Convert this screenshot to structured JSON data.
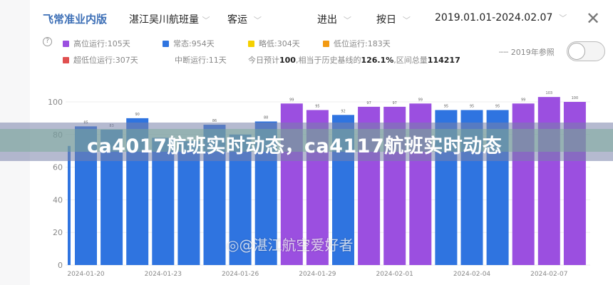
{
  "header": {
    "brand": "飞常准业内版",
    "route": "湛江吴川航班量",
    "type": "客运",
    "direction": "进出",
    "granularity": "按日",
    "date_range": "2019.01.01-2024.02.07"
  },
  "legend": {
    "items": [
      {
        "label": "高位运行:105天",
        "color": "#9b4fe0"
      },
      {
        "label": "常态:954天",
        "color": "#2f74e0"
      },
      {
        "label": "略低:304天",
        "color": "#f5d000"
      },
      {
        "label": "低位运行:183天",
        "color": "#f29a12"
      },
      {
        "label": "超低位运行:307天",
        "color": "#e05050"
      }
    ],
    "interrupted": "中断运行:11天",
    "summary_prefix": "今日预计",
    "summary_today": "100",
    "summary_mid": ",相当于历史基线的",
    "summary_pct": "126.1%",
    "summary_mid2": ",区间总量",
    "summary_total": "114217",
    "reference_label": "2019年参照",
    "reference_on": false
  },
  "overlay": {
    "banner": "ca4017航班实时动态，ca4117航班实时动态",
    "watermark": "@湛江航空爱好者"
  },
  "chart_data": {
    "type": "bar",
    "ylim": [
      0,
      105
    ],
    "yticks": [
      "0",
      "20",
      "40",
      "60",
      "80",
      "100"
    ],
    "grid": true,
    "xtick_labels": [
      "2024-01-20",
      "2024-01-23",
      "2024-01-26",
      "2024-01-29",
      "2024-02-01",
      "2024-02-04",
      "2024-02-07"
    ],
    "bars": [
      {
        "value": 73,
        "status": "常态",
        "label": ""
      },
      {
        "value": 85,
        "status": "常态",
        "label": "85"
      },
      {
        "value": 83,
        "status": "常态",
        "label": "83"
      },
      {
        "value": 90,
        "status": "常态",
        "label": "90"
      },
      {
        "value": 78,
        "status": "常态",
        "label": ""
      },
      {
        "value": 76,
        "status": "常态",
        "label": ""
      },
      {
        "value": 86,
        "status": "常态",
        "label": "86"
      },
      {
        "value": 80,
        "status": "常态",
        "label": ""
      },
      {
        "value": 88,
        "status": "常态",
        "label": "88"
      },
      {
        "value": 99,
        "status": "高位运行",
        "label": "99"
      },
      {
        "value": 95,
        "status": "高位运行",
        "label": "95"
      },
      {
        "value": 92,
        "status": "常态",
        "label": "92"
      },
      {
        "value": 97,
        "status": "高位运行",
        "label": "97"
      },
      {
        "value": 97,
        "status": "高位运行",
        "label": "97"
      },
      {
        "value": 99,
        "status": "高位运行",
        "label": "99"
      },
      {
        "value": 95,
        "status": "常态",
        "label": "95"
      },
      {
        "value": 95,
        "status": "常态",
        "label": "95"
      },
      {
        "value": 95,
        "status": "常态",
        "label": "95"
      },
      {
        "value": 99,
        "status": "高位运行",
        "label": "99"
      },
      {
        "value": 103,
        "status": "高位运行",
        "label": "103"
      },
      {
        "value": 100,
        "status": "高位运行",
        "label": "100"
      }
    ],
    "status_colors": {
      "高位运行": "#9b4fe0",
      "常态": "#2f74e0"
    }
  }
}
